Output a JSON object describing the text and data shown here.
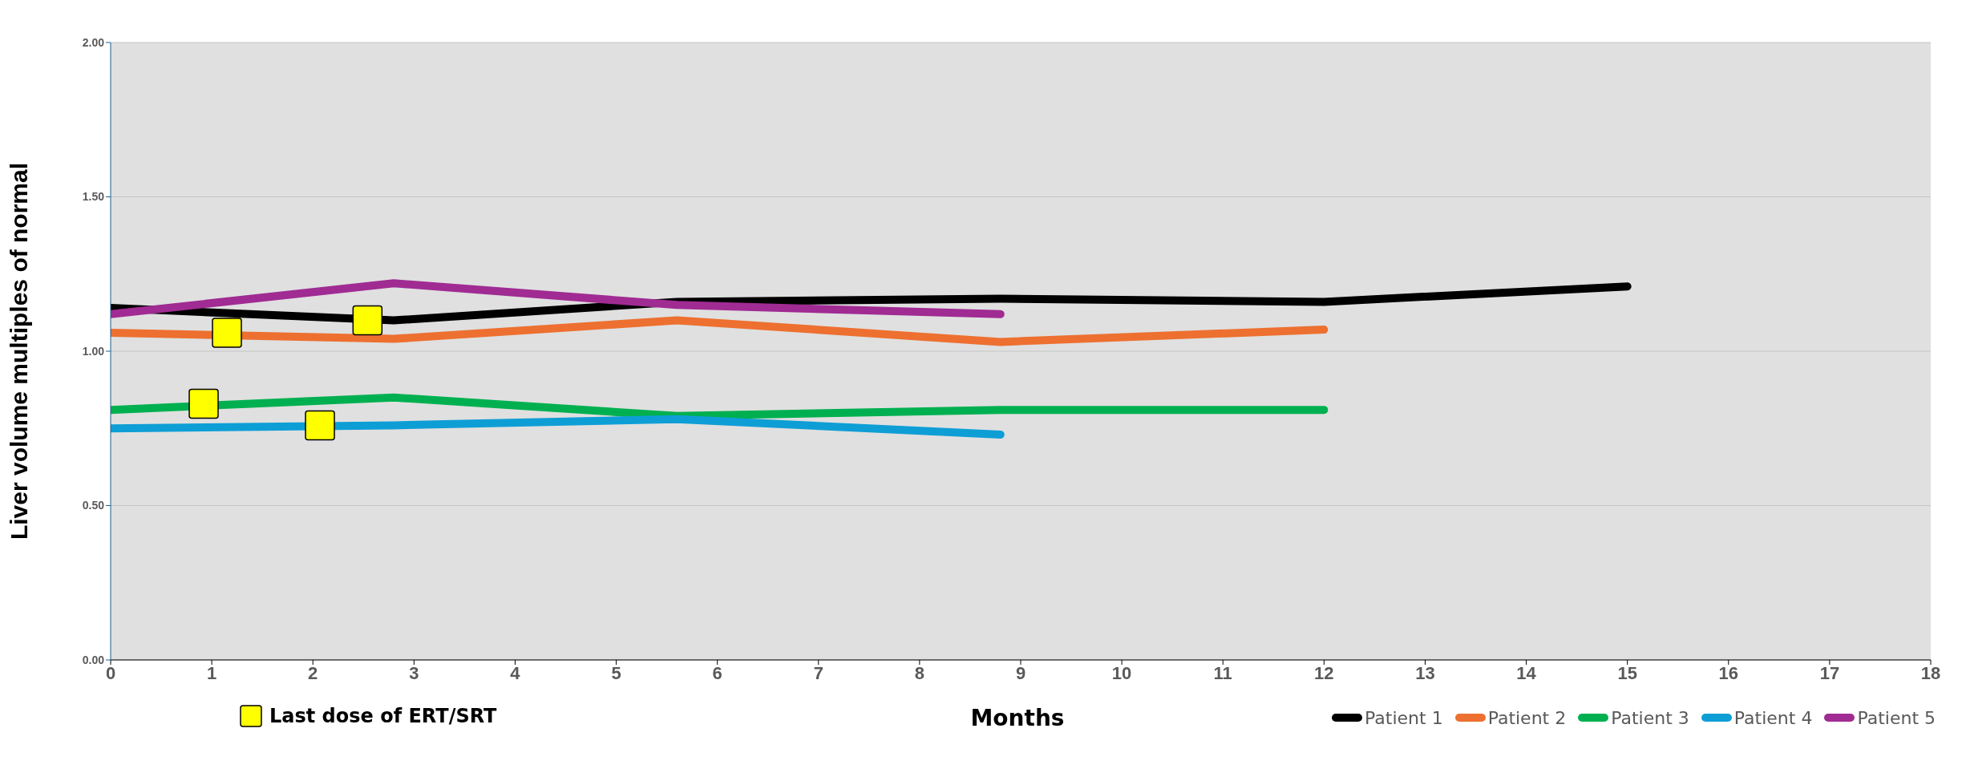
{
  "chart_data": {
    "type": "line",
    "xlabel": "Months",
    "ylabel": "Liver volume multiples of normal",
    "xlim": [
      0,
      18
    ],
    "xticks": [
      0,
      1,
      2,
      3,
      4,
      5,
      6,
      7,
      8,
      9,
      10,
      11,
      12,
      13,
      14,
      15,
      16,
      17,
      18
    ],
    "ylim": [
      0,
      2
    ],
    "yticks": [
      {
        "value": 0,
        "label": "0.00"
      },
      {
        "value": 0.5,
        "label": "0.50"
      },
      {
        "value": 1,
        "label": "1.00"
      },
      {
        "value": 1.5,
        "label": "1.50"
      },
      {
        "value": 2,
        "label": "2.00"
      }
    ],
    "grid": "y",
    "legend": "bottom",
    "marker": "none",
    "line_style": "solid",
    "series": [
      {
        "name": "Patient 1",
        "color": "#000000",
        "x": [
          0,
          2.8,
          5.6,
          8.8,
          12,
          15
        ],
        "values": [
          1.14,
          1.1,
          1.16,
          1.17,
          1.16,
          1.21
        ]
      },
      {
        "name": "Patient 2",
        "color": "#ed7030",
        "x": [
          0,
          2.8,
          5.6,
          8.8,
          12
        ],
        "values": [
          1.06,
          1.04,
          1.1,
          1.03,
          1.07
        ]
      },
      {
        "name": "Patient 3",
        "color": "#00b050",
        "x": [
          0,
          2.8,
          5.6,
          8.8,
          12
        ],
        "values": [
          0.81,
          0.85,
          0.79,
          0.81,
          0.81
        ]
      },
      {
        "name": "Patient 4",
        "color": "#0e9ed6",
        "x": [
          0,
          2.8,
          5.6,
          8.8
        ],
        "values": [
          0.75,
          0.76,
          0.78,
          0.73
        ]
      },
      {
        "name": "Patient 5",
        "color": "#a02b93",
        "x": [
          0,
          2.8,
          5.6,
          8.8
        ],
        "values": [
          1.12,
          1.22,
          1.15,
          1.12
        ]
      },
      {
        "name": "Last dose of ERT/SRT",
        "type": "scatter",
        "marker": "square",
        "color": "#ffff00",
        "x": [
          1.15,
          2.54,
          0.92,
          2.07
        ],
        "values": [
          1.06,
          1.1,
          0.83,
          0.76
        ]
      }
    ]
  }
}
